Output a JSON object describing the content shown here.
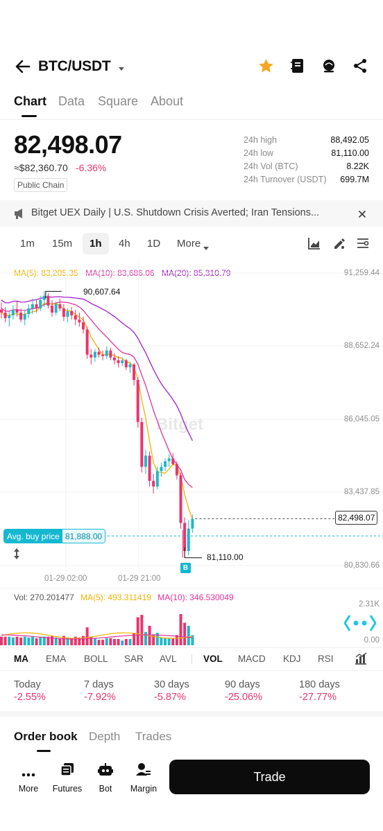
{
  "header": {
    "pair": "BTC/USDT"
  },
  "tabs": [
    "Chart",
    "Data",
    "Square",
    "About"
  ],
  "price": {
    "last": "82,498.07",
    "fiat": "≈$82,360.70",
    "change": "-6.36%",
    "badge": "Public Chain"
  },
  "stats": [
    {
      "label": "24h high",
      "value": "88,492.05"
    },
    {
      "label": "24h low",
      "value": "81,110.00"
    },
    {
      "label": "24h Vol (BTC)",
      "value": "8.22K"
    },
    {
      "label": "24h Turnover (USDT)",
      "value": "699.7M"
    }
  ],
  "news": {
    "text": "Bitget UEX Daily | U.S. Shutdown Crisis Averted; Iran Tensions..."
  },
  "timeframes": [
    "1m",
    "15m",
    "1h",
    "4h",
    "1D",
    "More"
  ],
  "ma_legend": {
    "ma5": "MA(5): 83,205.35",
    "ma10": "MA(10): 83,686.06",
    "ma20": "MA(20): 85,310.79"
  },
  "chart": {
    "y_ticks": [
      "91,259.44",
      "88,652.24",
      "86,045.05",
      "83,437.85",
      "80,830.66"
    ],
    "x_ticks": [
      "01-29 02:00",
      "01-29 21:00"
    ],
    "high_label": "90,607.64",
    "low_label": "81,110.00",
    "current_price": "82,498.07",
    "avg_buy_label": "Avg. buy price",
    "avg_buy_value": "81,888.00",
    "buy_marker": "B",
    "watermark": "Bitget"
  },
  "chart_data": {
    "type": "candlestick",
    "title": "",
    "ylim": [
      80830.66,
      91259.44
    ],
    "colors": {
      "up": "#20b8c8",
      "down": "#e8356d",
      "ma5": "#f0b400",
      "ma10": "#e0329e",
      "ma20": "#a020d0"
    },
    "candles": [
      [
        89950,
        90200,
        89650,
        89850
      ],
      [
        89850,
        90050,
        89500,
        89650
      ],
      [
        89650,
        89900,
        89350,
        89750
      ],
      [
        89750,
        90100,
        89600,
        89950
      ],
      [
        89950,
        90250,
        89700,
        89850
      ],
      [
        89850,
        90000,
        89500,
        89600
      ],
      [
        89600,
        89950,
        89400,
        89800
      ],
      [
        89800,
        90150,
        89650,
        90000
      ],
      [
        90000,
        90350,
        89800,
        90150
      ],
      [
        90150,
        90300,
        89850,
        90000
      ],
      [
        90000,
        90450,
        89900,
        90300
      ],
      [
        90300,
        90607.64,
        90050,
        90450
      ],
      [
        90450,
        90550,
        90000,
        90100
      ],
      [
        90100,
        90300,
        89700,
        89850
      ],
      [
        89850,
        90250,
        89750,
        90150
      ],
      [
        90150,
        90350,
        89900,
        90000
      ],
      [
        90000,
        90150,
        89550,
        89700
      ],
      [
        89700,
        90000,
        89500,
        89900
      ],
      [
        89900,
        90050,
        89600,
        89750
      ],
      [
        89750,
        89950,
        89400,
        89600
      ],
      [
        89600,
        89850,
        89350,
        89500
      ],
      [
        89500,
        89700,
        89100,
        89250
      ],
      [
        89250,
        89350,
        88200,
        88350
      ],
      [
        88350,
        88550,
        88000,
        88250
      ],
      [
        88250,
        88550,
        88100,
        88450
      ],
      [
        88450,
        88600,
        88250,
        88350
      ],
      [
        88350,
        88500,
        88150,
        88300
      ],
      [
        88300,
        88650,
        88200,
        88500
      ],
      [
        88500,
        88600,
        88150,
        88250
      ],
      [
        88250,
        88400,
        88000,
        88150
      ],
      [
        88150,
        88300,
        87900,
        88050
      ],
      [
        88050,
        88250,
        87950,
        88150
      ],
      [
        88150,
        88200,
        87800,
        87900
      ],
      [
        87900,
        88100,
        87700,
        88000
      ],
      [
        88000,
        88050,
        87250,
        87450
      ],
      [
        87450,
        87550,
        85750,
        85950
      ],
      [
        85950,
        86100,
        84150,
        84350
      ],
      [
        84350,
        84950,
        84100,
        84750
      ],
      [
        84750,
        84900,
        83650,
        83850
      ],
      [
        83850,
        84100,
        83400,
        83650
      ],
      [
        83650,
        84350,
        83550,
        84200
      ],
      [
        84200,
        84500,
        84000,
        84350
      ],
      [
        84350,
        84650,
        84200,
        84550
      ],
      [
        84550,
        84800,
        84350,
        84650
      ],
      [
        84650,
        84850,
        84400,
        84450
      ],
      [
        84450,
        84550,
        83900,
        84050
      ],
      [
        84050,
        84150,
        82150,
        82350
      ],
      [
        82350,
        82550,
        81110,
        81350
      ],
      [
        81350,
        82450,
        81200,
        82150
      ],
      [
        82150,
        82650,
        82000,
        82498.07
      ]
    ],
    "volume": {
      "label": "Vol: 270.201477",
      "ma5": "MA(5): 493.311419",
      "ma10": "MA(10): 346.530049",
      "y_ticks": [
        "2.31K",
        "0.00"
      ]
    }
  },
  "indicators": [
    "MA",
    "EMA",
    "BOLL",
    "SAR",
    "AVL",
    "VOL",
    "MACD",
    "KDJ",
    "RSI"
  ],
  "performance": [
    {
      "label": "Today",
      "value": "-2.55%"
    },
    {
      "label": "7 days",
      "value": "-7.92%"
    },
    {
      "label": "30 days",
      "value": "-5.87%"
    },
    {
      "label": "90 days",
      "value": "-25.06%"
    },
    {
      "label": "180 days",
      "value": "-27.77%"
    }
  ],
  "book_tabs": [
    "Order book",
    "Depth",
    "Trades"
  ],
  "bottom_bar": {
    "items": [
      "More",
      "Futures",
      "Bot",
      "Margin"
    ],
    "trade": "Trade"
  }
}
